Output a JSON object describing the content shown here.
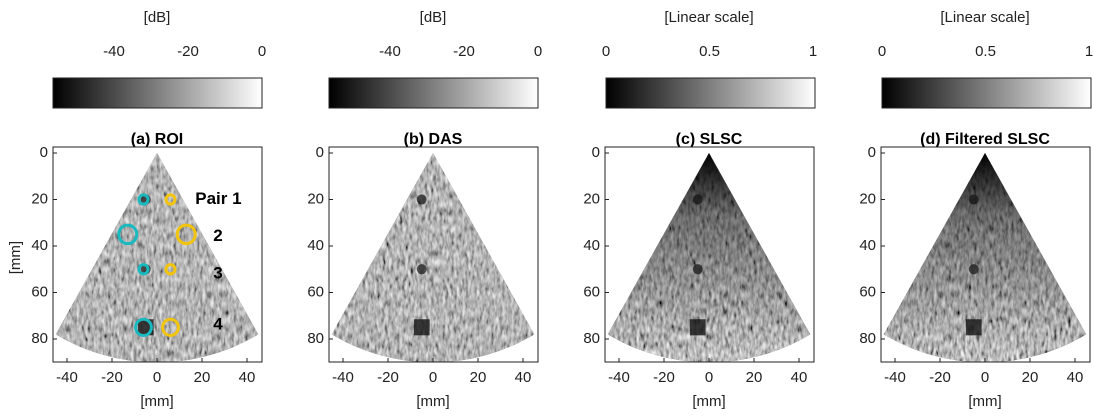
{
  "panels": [
    {
      "title": "(a) ROI",
      "colorbar": {
        "label": "[dB]",
        "ticks": [
          -40,
          -20,
          0
        ]
      },
      "x_axis": {
        "label": "[mm]",
        "ticks": [
          -40,
          -20,
          0,
          20,
          40
        ]
      },
      "y_axis": {
        "label": "[mm]",
        "ticks": [
          0,
          20,
          40,
          60,
          80
        ]
      },
      "annotations": [
        "Pair 1",
        "2",
        "3",
        "4"
      ]
    },
    {
      "title": "(b) DAS",
      "colorbar": {
        "label": "[dB]",
        "ticks": [
          -40,
          -20,
          0
        ]
      },
      "x_axis": {
        "label": "[mm]",
        "ticks": [
          -40,
          -20,
          0,
          20,
          40
        ]
      },
      "y_axis": {
        "ticks": [
          0,
          20,
          40,
          60,
          80
        ]
      }
    },
    {
      "title": "(c) SLSC",
      "colorbar": {
        "label": "[Linear scale]",
        "ticks": [
          0,
          0.5,
          1
        ]
      },
      "x_axis": {
        "label": "[mm]",
        "ticks": [
          -40,
          -20,
          0,
          20,
          40
        ]
      },
      "y_axis": {
        "ticks": [
          0,
          20,
          40,
          60,
          80
        ]
      }
    },
    {
      "title": "(d) Filtered SLSC",
      "colorbar": {
        "label": "[Linear scale]",
        "ticks": [
          0,
          0.5,
          1
        ]
      },
      "x_axis": {
        "label": "[mm]",
        "ticks": [
          -40,
          -20,
          0,
          20,
          40
        ]
      },
      "y_axis": {
        "ticks": [
          0,
          20,
          40,
          60,
          80
        ]
      }
    }
  ]
}
